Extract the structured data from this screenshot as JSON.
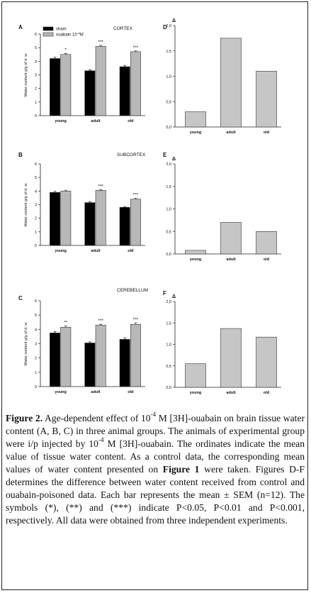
{
  "chart_data": [
    {
      "id": "A",
      "type": "bar",
      "panel_letter": "A",
      "region": "CORTEX",
      "categories": [
        "young",
        "adult",
        "old"
      ],
      "series": [
        {
          "name": "sham",
          "color": "#000000",
          "values": [
            4.2,
            3.3,
            3.6
          ],
          "errors": [
            0.1,
            0.08,
            0.1
          ]
        },
        {
          "name": "ouabain 10",
          "name_sup": "-4",
          "name_suffix": "M",
          "color": "#b8b8b8",
          "values": [
            4.5,
            5.1,
            4.7
          ],
          "errors": [
            0.08,
            0.07,
            0.06
          ],
          "sig": [
            "*",
            "***",
            "***"
          ]
        }
      ],
      "ylabel": "Water content g/g of d. w.",
      "ylim": [
        0,
        6
      ],
      "yticks": [
        "0",
        "1",
        "2",
        "3",
        "4",
        "5",
        "6"
      ],
      "legend": "top-left"
    },
    {
      "id": "B",
      "type": "bar",
      "panel_letter": "B",
      "region": "SUBCORTEX",
      "categories": [
        "young",
        "adult",
        "old"
      ],
      "series": [
        {
          "name": "sham",
          "color": "#000000",
          "values": [
            3.9,
            3.15,
            2.8
          ],
          "errors": [
            0.08,
            0.08,
            0.06
          ]
        },
        {
          "name": "ouabain",
          "color": "#b8b8b8",
          "values": [
            4.0,
            4.05,
            3.4
          ],
          "errors": [
            0.06,
            0.05,
            0.06
          ],
          "sig": [
            "",
            "***",
            "***"
          ]
        }
      ],
      "ylabel": "Water content g/g of d. w.",
      "ylim": [
        0,
        6
      ],
      "yticks": [
        "0",
        "1",
        "2",
        "3",
        "4",
        "5",
        "6"
      ]
    },
    {
      "id": "C",
      "type": "bar",
      "panel_letter": "C",
      "region": "CEREBELLUM",
      "categories": [
        "young",
        "adult",
        "old"
      ],
      "series": [
        {
          "name": "sham",
          "color": "#000000",
          "values": [
            3.75,
            3.05,
            3.3
          ],
          "errors": [
            0.1,
            0.08,
            0.1
          ]
        },
        {
          "name": "ouabain",
          "color": "#b8b8b8",
          "values": [
            4.15,
            4.3,
            4.35
          ],
          "errors": [
            0.08,
            0.06,
            0.1
          ],
          "sig": [
            "**",
            "***",
            "***"
          ]
        }
      ],
      "ylabel": "Water content g/g of d. w.",
      "ylim": [
        0,
        6
      ],
      "yticks": [
        "0",
        "1",
        "2",
        "3",
        "4",
        "5",
        "6"
      ]
    },
    {
      "id": "D",
      "type": "bar",
      "panel_letter": "D",
      "region": "",
      "categories": [
        "young",
        "adult",
        "old"
      ],
      "series": [
        {
          "name": "Δ",
          "color": "#c6c6c6",
          "values": [
            0.3,
            1.75,
            1.1
          ]
        }
      ],
      "ylabel": "Δ",
      "ylim": [
        0,
        2
      ],
      "yticks": [
        "0,0",
        "0,5",
        "1,0",
        "1,5",
        "2,0"
      ]
    },
    {
      "id": "E",
      "type": "bar",
      "panel_letter": "E",
      "region": "",
      "categories": [
        "young",
        "adult",
        "old"
      ],
      "series": [
        {
          "name": "Δ",
          "color": "#c6c6c6",
          "values": [
            0.08,
            0.7,
            0.5
          ]
        }
      ],
      "ylabel": "Δ",
      "ylim": [
        0,
        2
      ],
      "yticks": [
        "0,0",
        "0,5",
        "1,0",
        "1,5",
        "2,0"
      ]
    },
    {
      "id": "F",
      "type": "bar",
      "panel_letter": "F",
      "region": "",
      "categories": [
        "young",
        "adult",
        "old"
      ],
      "series": [
        {
          "name": "Δ",
          "color": "#c6c6c6",
          "values": [
            0.55,
            1.37,
            1.17
          ]
        }
      ],
      "ylabel": "Δ",
      "ylim": [
        0,
        2
      ],
      "yticks": [
        "0,0",
        "0,5",
        "1,0",
        "1,5",
        "2,0"
      ]
    }
  ],
  "caption": {
    "label": "Figure 2.",
    "p1": " Age-dependent effect of 10",
    "sup1": "-4",
    "p2": " M [3H]-ouabain on brain tissue water content (A, B, C) in three animal groups. The animals of experimental group were i/p injected by 10",
    "sup2": "-4",
    "p3": " M [3H]-ouabain. The ordinates indicate the mean value of tissue water content. As a control data, the corresponding mean values of water content presented on ",
    "figref": "Figure 1",
    "p4": " were taken. Figures D-F determines the difference between water content received from control and ouabain-poisoned data. Each bar represents the mean ± SEM (n=12). The symbols (*), (**) and (***) indicate P<0.05, P<0.01 and P<0.001, respectively. All data were obtained from three independent experiments."
  }
}
